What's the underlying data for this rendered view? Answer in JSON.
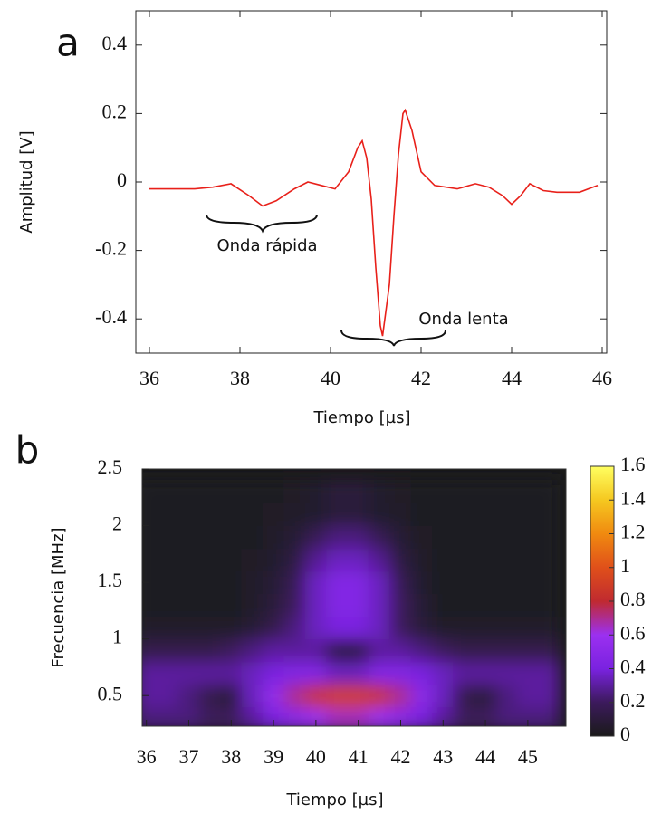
{
  "chart_data": [
    {
      "type": "line",
      "panel_label": "a",
      "x_label": "Tiempo [µs]",
      "y_label": "Amplitud [V]",
      "annotations": [
        "Onda rápida",
        "Onda lenta"
      ],
      "xlim": [
        35.7,
        46.1
      ],
      "ylim": [
        -0.5,
        0.5
      ],
      "xticks": [
        36,
        38,
        40,
        42,
        44,
        46
      ],
      "yticks": [
        -0.4,
        -0.2,
        0,
        0.2,
        0.4
      ],
      "series": [
        {
          "color": "#e8201a",
          "x": [
            36.0,
            36.5,
            37.0,
            37.4,
            37.8,
            38.2,
            38.5,
            38.8,
            39.2,
            39.5,
            39.8,
            40.1,
            40.4,
            40.6,
            40.7,
            40.8,
            40.9,
            41.0,
            41.1,
            41.15,
            41.3,
            41.4,
            41.5,
            41.6,
            41.65,
            41.8,
            42.0,
            42.3,
            42.8,
            43.2,
            43.5,
            43.8,
            44.0,
            44.2,
            44.4,
            44.7,
            45.0,
            45.5,
            45.9
          ],
          "values": [
            -0.02,
            -0.02,
            -0.02,
            -0.015,
            -0.005,
            -0.04,
            -0.07,
            -0.055,
            -0.02,
            0.0,
            -0.01,
            -0.02,
            0.03,
            0.1,
            0.12,
            0.07,
            -0.05,
            -0.25,
            -0.42,
            -0.45,
            -0.3,
            -0.1,
            0.08,
            0.2,
            0.21,
            0.15,
            0.03,
            -0.01,
            -0.02,
            -0.005,
            -0.015,
            -0.04,
            -0.065,
            -0.04,
            -0.005,
            -0.025,
            -0.03,
            -0.03,
            -0.01
          ]
        }
      ]
    },
    {
      "type": "heatmap",
      "panel_label": "b",
      "x_label": "Tiempo [µs]",
      "y_label": "Frecuencia [MHz]",
      "xlim": [
        35.9,
        45.9
      ],
      "ylim": [
        0.23,
        2.5
      ],
      "xticks": [
        36,
        37,
        38,
        39,
        40,
        41,
        42,
        43,
        44,
        45
      ],
      "yticks": [
        0.5,
        1,
        1.5,
        2,
        2.5
      ],
      "clim": [
        0,
        1.6
      ],
      "cticks": [
        0,
        0.2,
        0.4,
        0.6,
        0.8,
        1,
        1.2,
        1.4,
        1.6
      ],
      "colorscale": [
        "#1a1a1a",
        "#3c1a5c",
        "#7a22e0",
        "#9b30f0",
        "#c02a30",
        "#e0501a",
        "#f08a10",
        "#f5c820",
        "#ffff60"
      ],
      "x": [
        36,
        36.5,
        37,
        37.5,
        38,
        38.5,
        39,
        39.5,
        40,
        40.5,
        41,
        41.5,
        42,
        42.5,
        43,
        43.5,
        44,
        44.5,
        45,
        45.5
      ],
      "y": [
        0.3,
        0.5,
        0.7,
        0.9,
        1.1,
        1.3,
        1.5,
        1.7,
        1.9,
        2.1,
        2.3
      ],
      "values": [
        [
          0.25,
          0.25,
          0.25,
          0.2,
          0.2,
          0.3,
          0.4,
          0.5,
          0.6,
          0.65,
          0.65,
          0.6,
          0.5,
          0.4,
          0.3,
          0.2,
          0.2,
          0.25,
          0.25,
          0.25
        ],
        [
          0.3,
          0.3,
          0.25,
          0.15,
          0.1,
          0.35,
          0.55,
          0.7,
          0.85,
          0.9,
          0.9,
          0.85,
          0.7,
          0.5,
          0.35,
          0.15,
          0.1,
          0.25,
          0.3,
          0.3
        ],
        [
          0.3,
          0.3,
          0.3,
          0.3,
          0.3,
          0.35,
          0.4,
          0.45,
          0.45,
          0.35,
          0.35,
          0.45,
          0.45,
          0.4,
          0.35,
          0.3,
          0.3,
          0.3,
          0.3,
          0.3
        ],
        [
          0.15,
          0.15,
          0.15,
          0.15,
          0.2,
          0.25,
          0.3,
          0.3,
          0.3,
          0.1,
          0.1,
          0.3,
          0.3,
          0.25,
          0.2,
          0.15,
          0.15,
          0.15,
          0.15,
          0.15
        ],
        [
          0.05,
          0.05,
          0.05,
          0.05,
          0.05,
          0.08,
          0.15,
          0.25,
          0.35,
          0.4,
          0.4,
          0.35,
          0.2,
          0.1,
          0.05,
          0.05,
          0.05,
          0.05,
          0.05,
          0.05
        ],
        [
          0.03,
          0.03,
          0.03,
          0.03,
          0.03,
          0.05,
          0.1,
          0.2,
          0.35,
          0.45,
          0.45,
          0.35,
          0.2,
          0.08,
          0.03,
          0.03,
          0.03,
          0.03,
          0.03,
          0.03
        ],
        [
          0.03,
          0.03,
          0.03,
          0.03,
          0.03,
          0.05,
          0.08,
          0.18,
          0.35,
          0.45,
          0.45,
          0.35,
          0.18,
          0.06,
          0.03,
          0.03,
          0.03,
          0.03,
          0.03,
          0.03
        ],
        [
          0.03,
          0.03,
          0.03,
          0.03,
          0.03,
          0.04,
          0.06,
          0.12,
          0.28,
          0.35,
          0.35,
          0.28,
          0.12,
          0.05,
          0.03,
          0.03,
          0.03,
          0.03,
          0.03,
          0.03
        ],
        [
          0.03,
          0.03,
          0.03,
          0.03,
          0.03,
          0.03,
          0.05,
          0.08,
          0.18,
          0.25,
          0.25,
          0.18,
          0.08,
          0.04,
          0.03,
          0.03,
          0.03,
          0.03,
          0.03,
          0.03
        ],
        [
          0.02,
          0.02,
          0.02,
          0.02,
          0.02,
          0.03,
          0.04,
          0.05,
          0.06,
          0.1,
          0.1,
          0.06,
          0.05,
          0.03,
          0.02,
          0.02,
          0.02,
          0.02,
          0.02,
          0.02
        ],
        [
          0.02,
          0.02,
          0.02,
          0.02,
          0.02,
          0.02,
          0.03,
          0.04,
          0.06,
          0.1,
          0.1,
          0.06,
          0.04,
          0.03,
          0.02,
          0.02,
          0.02,
          0.02,
          0.02,
          0.02
        ]
      ]
    }
  ]
}
